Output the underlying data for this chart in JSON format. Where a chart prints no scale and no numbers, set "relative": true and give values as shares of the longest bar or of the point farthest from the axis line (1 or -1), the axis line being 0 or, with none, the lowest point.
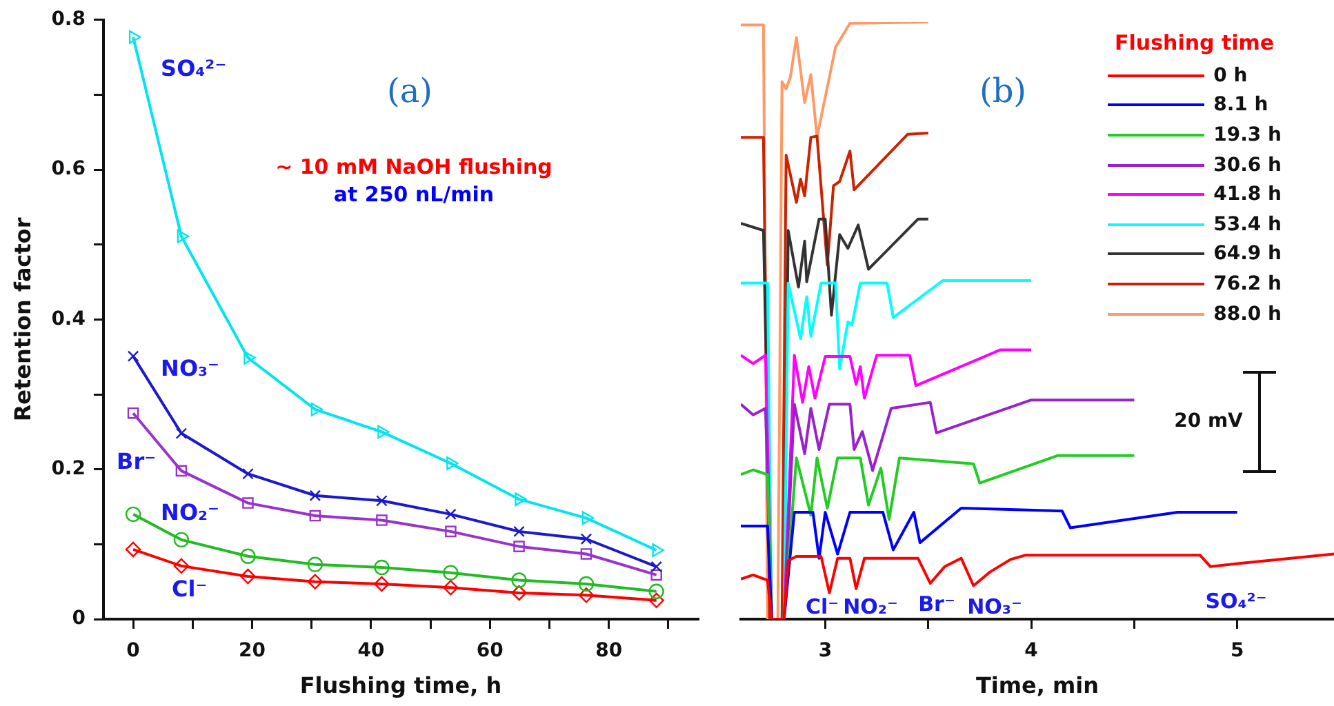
{
  "chart_data": [
    {
      "type": "line",
      "xlabel": "Flushing time, h",
      "ylabel": "Retention factor",
      "x": [
        0,
        8.1,
        19.3,
        30.6,
        41.8,
        53.4,
        64.9,
        76.2,
        88.0
      ],
      "xlim": [
        -5,
        95
      ],
      "xticks": [
        0,
        {
          "value": 10,
          "label": null
        },
        20,
        {
          "value": 30,
          "label": null
        },
        40,
        {
          "value": 50,
          "label": null
        },
        60,
        {
          "value": 70,
          "label": null
        },
        80,
        {
          "value": 90,
          "label": null
        }
      ],
      "ylim": [
        0,
        0.8
      ],
      "yticks": [
        0,
        {
          "value": 0.1,
          "label": null
        },
        0.2,
        {
          "value": 0.3,
          "label": null
        },
        0.4,
        {
          "value": 0.5,
          "label": null
        },
        0.6,
        {
          "value": 0.7,
          "label": null
        },
        0.8
      ],
      "grid": false,
      "line_style": "solid",
      "annotations": [
        "(a)",
        "~ 10 mM NaOH flushing",
        "at 250 nL/min"
      ],
      "series": [
        {
          "name": "SO₄²⁻",
          "color": "#00e5ee",
          "marker": "triangle",
          "values": [
            0.777,
            0.511,
            0.349,
            0.28,
            0.25,
            0.208,
            0.16,
            0.135,
            0.092
          ]
        },
        {
          "name": "NO₃⁻",
          "color": "#1a1acc",
          "marker": "cross",
          "values": [
            0.351,
            0.248,
            0.194,
            0.165,
            0.158,
            0.14,
            0.117,
            0.107,
            0.07
          ]
        },
        {
          "name": "Br⁻",
          "color": "#9933cc",
          "marker": "square",
          "values": [
            0.275,
            0.198,
            0.155,
            0.138,
            0.132,
            0.117,
            0.097,
            0.087,
            0.059
          ]
        },
        {
          "name": "NO₂⁻",
          "color": "#22bb22",
          "marker": "circle",
          "values": [
            0.14,
            0.106,
            0.084,
            0.073,
            0.069,
            0.062,
            0.052,
            0.047,
            0.037
          ]
        },
        {
          "name": "Cl⁻",
          "color": "#ff0000",
          "marker": "diamond",
          "values": [
            0.093,
            0.071,
            0.057,
            0.05,
            0.047,
            0.042,
            0.035,
            0.032,
            0.025
          ]
        }
      ]
    },
    {
      "type": "line",
      "relative": true,
      "xlabel": "Time, min",
      "xlim": [
        2.59,
        5.47
      ],
      "xticks": [
        3,
        {
          "value": 3.5,
          "label": null
        },
        4,
        {
          "value": 4.5,
          "label": null
        },
        5
      ],
      "grid": false,
      "legend": "top right",
      "legend_title": "Flushing time",
      "marker": "none",
      "line_style": "solid",
      "annotations": [
        "(b)",
        "20 mV",
        "Cl⁻",
        "NO₂⁻",
        "Br⁻",
        "NO₃⁻",
        "SO₄²⁻"
      ],
      "series": [
        {
          "name": "0 h",
          "color": "#ff0000",
          "x": [
            2.59,
            2.65,
            2.72,
            2.74,
            2.8,
            2.82,
            2.86,
            2.98,
            3.02,
            3.06,
            3.12,
            3.15,
            3.19,
            3.45,
            3.51,
            3.58,
            3.66,
            3.72,
            3.8,
            3.9,
            3.97,
            4.6,
            4.82,
            4.87,
            5.0,
            5.47
          ],
          "values": [
            0.067,
            0.074,
            0.065,
            0,
            0,
            0.098,
            0.105,
            0.105,
            0.044,
            0.102,
            0.102,
            0.051,
            0.102,
            0.102,
            0.06,
            0.088,
            0.102,
            0.056,
            0.079,
            0.1,
            0.107,
            0.107,
            0.107,
            0.088,
            0.093,
            0.109
          ]
        },
        {
          "name": "8.1 h",
          "color": "#0000ff",
          "x": [
            2.59,
            2.72,
            2.74,
            2.8,
            2.85,
            2.94,
            2.97,
            3.0,
            3.06,
            3.12,
            3.28,
            3.33,
            3.43,
            3.46,
            3.66,
            4.15,
            4.19,
            4.71,
            5.0
          ],
          "values": [
            0.156,
            0.156,
            0,
            0,
            0.179,
            0.179,
            0.102,
            0.179,
            0.109,
            0.179,
            0.179,
            0.116,
            0.179,
            0.128,
            0.186,
            0.181,
            0.153,
            0.179,
            0.179
          ]
        },
        {
          "name": "19.3 h",
          "color": "#22cc22",
          "x": [
            2.59,
            2.65,
            2.72,
            2.74,
            2.8,
            2.86,
            2.93,
            2.96,
            3.01,
            3.06,
            3.17,
            3.21,
            3.27,
            3.31,
            3.36,
            3.72,
            3.75,
            4.13,
            4.5
          ],
          "values": [
            0.242,
            0.25,
            0.242,
            0,
            0,
            0.27,
            0.174,
            0.27,
            0.186,
            0.27,
            0.27,
            0.191,
            0.253,
            0.167,
            0.27,
            0.26,
            0.228,
            0.274,
            0.274
          ]
        },
        {
          "name": "30.6 h",
          "color": "#9922cc",
          "x": [
            2.59,
            2.65,
            2.71,
            2.74,
            2.8,
            2.85,
            2.9,
            2.93,
            2.97,
            3.02,
            3.12,
            3.14,
            3.18,
            3.23,
            3.32,
            3.51,
            3.54,
            4.0,
            4.5
          ],
          "values": [
            0.36,
            0.342,
            0.353,
            0,
            0,
            0.36,
            0.277,
            0.353,
            0.284,
            0.36,
            0.36,
            0.284,
            0.314,
            0.249,
            0.353,
            0.363,
            0.312,
            0.367,
            0.367
          ]
        },
        {
          "name": "41.8 h",
          "color": "#ff00ff",
          "x": [
            2.59,
            2.65,
            2.71,
            2.74,
            2.8,
            2.85,
            2.89,
            2.92,
            2.95,
            3.0,
            3.12,
            3.15,
            3.17,
            3.19,
            3.25,
            3.41,
            3.44,
            3.85,
            4.0
          ],
          "values": [
            0.442,
            0.428,
            0.442,
            0,
            0,
            0.442,
            0.363,
            0.423,
            0.37,
            0.44,
            0.44,
            0.393,
            0.423,
            0.37,
            0.442,
            0.442,
            0.391,
            0.451,
            0.451
          ]
        },
        {
          "name": "53.4 h",
          "color": "#00ffff",
          "x": [
            2.59,
            2.72,
            2.74,
            2.8,
            2.82,
            2.88,
            2.91,
            2.93,
            2.98,
            3.05,
            3.07,
            3.11,
            3.13,
            3.17,
            3.3,
            3.33,
            3.57,
            4.0
          ],
          "values": [
            0.563,
            0.563,
            0,
            0,
            0.563,
            0.47,
            0.54,
            0.474,
            0.563,
            0.563,
            0.419,
            0.498,
            0.493,
            0.563,
            0.563,
            0.505,
            0.567,
            0.567
          ]
        },
        {
          "name": "64.9 h",
          "color": "#333333",
          "x": [
            2.59,
            2.7,
            2.74,
            2.8,
            2.82,
            2.87,
            2.9,
            2.91,
            2.97,
            3.0,
            3.03,
            3.07,
            3.11,
            3.16,
            3.21,
            3.45,
            3.5
          ],
          "values": [
            0.663,
            0.651,
            0,
            0,
            0.651,
            0.556,
            0.633,
            0.565,
            0.67,
            0.67,
            0.509,
            0.644,
            0.621,
            0.66,
            0.586,
            0.67,
            0.67
          ]
        },
        {
          "name": "76.2 h",
          "color": "#cc2200",
          "x": [
            2.59,
            2.7,
            2.73,
            2.79,
            2.81,
            2.86,
            2.88,
            2.9,
            2.93,
            2.96,
            3.01,
            3.04,
            3.07,
            3.12,
            3.14,
            3.4,
            3.5
          ],
          "values": [
            0.807,
            0.807,
            0,
            0,
            0.777,
            0.698,
            0.737,
            0.709,
            0.807,
            0.809,
            0.593,
            0.726,
            0.733,
            0.784,
            0.719,
            0.812,
            0.814
          ]
        },
        {
          "name": "88.0 h",
          "color": "#ff9966",
          "x": [
            2.59,
            2.7,
            2.72,
            2.77,
            2.79,
            2.81,
            2.83,
            2.86,
            2.9,
            2.93,
            2.96,
            3.05,
            3.12,
            3.5
          ],
          "values": [
            0.995,
            0.995,
            0,
            0,
            0.9,
            0.888,
            0.907,
            0.974,
            0.865,
            0.912,
            0.807,
            0.958,
            0.998,
            1.0
          ]
        }
      ]
    }
  ]
}
